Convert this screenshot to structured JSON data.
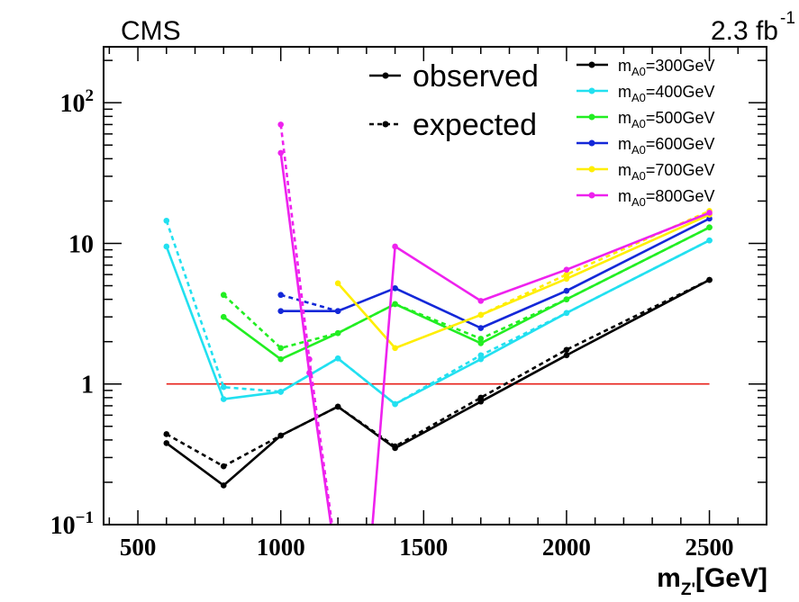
{
  "header": {
    "experiment": "CMS",
    "luminosity": "2.3 fb",
    "luminosity_sup": "-1"
  },
  "legend": {
    "observed_label": "observed",
    "expected_label": "expected",
    "mass_prefix": "m",
    "mass_sub": "A0",
    "placement": "top-right"
  },
  "chart_data": {
    "type": "line",
    "title": "",
    "xlabel": "m",
    "xlabel_sub": "Z'",
    "xlabel_unit": "[GeV]",
    "ylabel": "",
    "xlim": [
      380,
      2700
    ],
    "ylim": [
      0.1,
      250
    ],
    "y_scale": "log",
    "grid": false,
    "x_ticks": [
      500,
      1000,
      1500,
      2000,
      2500
    ],
    "x_tick_labels": [
      "500",
      "1000",
      "1500",
      "2000",
      "2500"
    ],
    "y_ticks": [
      0.1,
      1,
      10,
      100
    ],
    "y_tick_labels": [
      {
        "base": "10",
        "exp": "−1"
      },
      {
        "base": "1",
        "exp": ""
      },
      {
        "base": "10",
        "exp": ""
      },
      {
        "base": "10",
        "exp": "2"
      }
    ],
    "reference_line": {
      "y": 1,
      "x": [
        600,
        2500
      ],
      "color": "#e8201a"
    },
    "series": [
      {
        "name": "=300GeV",
        "color": "#000000",
        "observed": {
          "x": [
            600,
            800,
            1000,
            1200,
            1400,
            1700,
            2000,
            2500
          ],
          "y": [
            0.38,
            0.19,
            0.43,
            0.69,
            0.35,
            0.75,
            1.6,
            5.5
          ]
        },
        "expected": {
          "x": [
            600,
            800,
            1000,
            1200,
            1400,
            1700,
            2000,
            2500
          ],
          "y": [
            0.44,
            0.26,
            0.43,
            0.69,
            0.36,
            0.8,
            1.75,
            5.5
          ]
        }
      },
      {
        "name": "=400GeV",
        "color": "#22e0f0",
        "observed": {
          "x": [
            600,
            800,
            1000,
            1200,
            1400,
            1700,
            2000,
            2500
          ],
          "y": [
            9.5,
            0.78,
            0.88,
            1.52,
            0.72,
            1.5,
            3.2,
            10.5
          ]
        },
        "expected": {
          "x": [
            600,
            800,
            1000,
            1200,
            1400,
            1700,
            2000,
            2500
          ],
          "y": [
            14.5,
            0.95,
            0.88,
            1.52,
            0.72,
            1.6,
            3.2,
            10.5
          ]
        }
      },
      {
        "name": "=500GeV",
        "color": "#22ee22",
        "observed": {
          "x": [
            800,
            1000,
            1200,
            1400,
            1700,
            2000,
            2500
          ],
          "y": [
            3.0,
            1.5,
            2.3,
            3.7,
            1.95,
            4.0,
            13.0
          ]
        },
        "expected": {
          "x": [
            800,
            1000,
            1200,
            1400,
            1700,
            2000,
            2500
          ],
          "y": [
            4.3,
            1.8,
            2.3,
            3.7,
            2.1,
            4.0,
            13.0
          ]
        }
      },
      {
        "name": "=600GeV",
        "color": "#1428d8",
        "observed": {
          "x": [
            1000,
            1200,
            1400,
            1700,
            2000,
            2500
          ],
          "y": [
            3.3,
            3.3,
            4.8,
            2.5,
            4.6,
            15.0
          ]
        },
        "expected": {
          "x": [
            1000,
            1200
          ],
          "y": [
            4.3,
            3.3
          ]
        }
      },
      {
        "name": "=700GeV",
        "color": "#ffee00",
        "observed": {
          "x": [
            1200,
            1400,
            1700,
            2000,
            2500
          ],
          "y": [
            5.2,
            1.8,
            3.1,
            5.6,
            16.0
          ]
        },
        "expected": {
          "x": [
            1700,
            2000,
            2500
          ],
          "y": [
            3.1,
            6.0,
            17.0
          ]
        }
      },
      {
        "name": "=800GeV",
        "color": "#ee22ee",
        "observed": {
          "x": [
            1000,
            1100,
            1200,
            1300,
            1400,
            1700,
            2000,
            2500
          ],
          "y": [
            44,
            1.2,
            0.045,
            0.03,
            9.5,
            3.9,
            6.5,
            16.5
          ]
        },
        "expected": {
          "x": [
            1000,
            1100,
            1200
          ],
          "y": [
            70,
            1.5,
            0.05
          ]
        }
      }
    ]
  }
}
